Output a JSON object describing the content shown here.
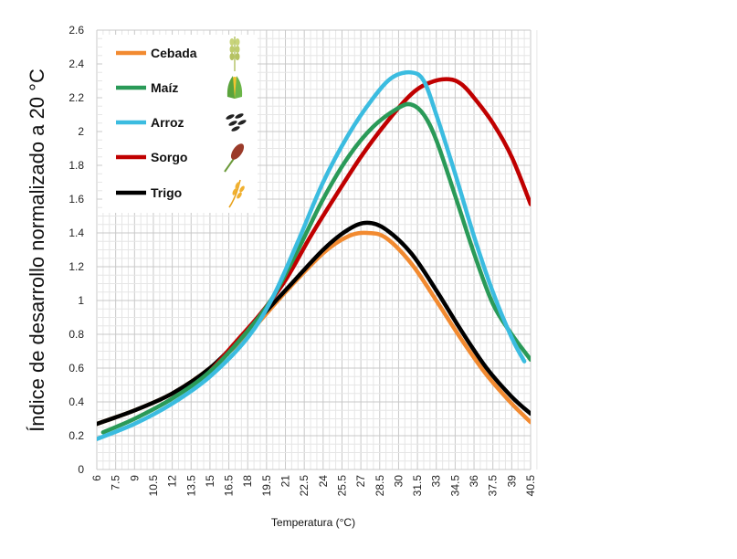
{
  "chart_data": {
    "type": "line",
    "title": "",
    "xlabel": "Temperatura (°C)",
    "ylabel": "Índice de desarrollo normalizado a 20 °C",
    "xlim": [
      6,
      40.5
    ],
    "ylim": [
      0,
      2.6
    ],
    "x_ticks": [
      "6",
      "7.5",
      "9",
      "10.5",
      "12",
      "13.5",
      "15",
      "16.5",
      "18",
      "19.5",
      "21",
      "22.5",
      "24",
      "25.5",
      "27",
      "28.5",
      "30",
      "31.5",
      "33",
      "34.5",
      "36",
      "37.5",
      "39",
      "40.5"
    ],
    "y_ticks": [
      "0",
      "0.2",
      "0.4",
      "0.6",
      "0.8",
      "1",
      "1.2",
      "1.4",
      "1.6",
      "1.8",
      "2",
      "2.2",
      "2.4",
      "2.6"
    ],
    "grid": true,
    "legend_position": "top-left",
    "series": [
      {
        "name": "Cebada",
        "color": "#f28a30",
        "icon": "barley-icon",
        "points": [
          [
            6,
            0.27
          ],
          [
            9,
            0.35
          ],
          [
            12,
            0.45
          ],
          [
            15,
            0.6
          ],
          [
            18,
            0.8
          ],
          [
            21,
            1.05
          ],
          [
            24,
            1.28
          ],
          [
            26,
            1.38
          ],
          [
            27.5,
            1.4
          ],
          [
            29,
            1.37
          ],
          [
            31,
            1.22
          ],
          [
            33,
            1.0
          ],
          [
            35,
            0.77
          ],
          [
            37,
            0.56
          ],
          [
            39,
            0.39
          ],
          [
            40.5,
            0.28
          ]
        ]
      },
      {
        "name": "Maíz",
        "color": "#2a9a58",
        "icon": "corn-icon",
        "points": [
          [
            6.5,
            0.22
          ],
          [
            9,
            0.3
          ],
          [
            12,
            0.42
          ],
          [
            15,
            0.58
          ],
          [
            18,
            0.82
          ],
          [
            20,
            1.02
          ],
          [
            22,
            1.3
          ],
          [
            24,
            1.6
          ],
          [
            26,
            1.85
          ],
          [
            28,
            2.03
          ],
          [
            30,
            2.14
          ],
          [
            31,
            2.16
          ],
          [
            32,
            2.1
          ],
          [
            33,
            1.95
          ],
          [
            34.5,
            1.62
          ],
          [
            36,
            1.28
          ],
          [
            37.5,
            0.98
          ],
          [
            39,
            0.8
          ],
          [
            40.5,
            0.65
          ]
        ]
      },
      {
        "name": "Arroz",
        "color": "#3bbce0",
        "icon": "rice-icon",
        "points": [
          [
            6,
            0.18
          ],
          [
            9,
            0.27
          ],
          [
            12,
            0.39
          ],
          [
            15,
            0.55
          ],
          [
            18,
            0.78
          ],
          [
            20,
            1.02
          ],
          [
            22,
            1.35
          ],
          [
            24,
            1.7
          ],
          [
            26,
            1.98
          ],
          [
            28,
            2.2
          ],
          [
            29.5,
            2.32
          ],
          [
            31,
            2.35
          ],
          [
            32,
            2.3
          ],
          [
            33,
            2.1
          ],
          [
            34.5,
            1.75
          ],
          [
            36,
            1.38
          ],
          [
            37.5,
            1.05
          ],
          [
            39,
            0.78
          ],
          [
            40,
            0.64
          ]
        ]
      },
      {
        "name": "Sorgo",
        "color": "#c00000",
        "icon": "sorghum-icon",
        "points": [
          [
            15,
            0.58
          ],
          [
            17,
            0.75
          ],
          [
            19,
            0.92
          ],
          [
            21,
            1.12
          ],
          [
            23,
            1.38
          ],
          [
            25,
            1.62
          ],
          [
            27,
            1.85
          ],
          [
            29,
            2.05
          ],
          [
            31,
            2.22
          ],
          [
            32.5,
            2.29
          ],
          [
            34,
            2.31
          ],
          [
            35,
            2.28
          ],
          [
            36,
            2.2
          ],
          [
            37.5,
            2.05
          ],
          [
            39,
            1.85
          ],
          [
            40.5,
            1.57
          ]
        ]
      },
      {
        "name": "Trigo",
        "color": "#000000",
        "icon": "wheat-icon",
        "points": [
          [
            6,
            0.27
          ],
          [
            9,
            0.35
          ],
          [
            12,
            0.45
          ],
          [
            15,
            0.6
          ],
          [
            18,
            0.82
          ],
          [
            21,
            1.06
          ],
          [
            24,
            1.3
          ],
          [
            26,
            1.42
          ],
          [
            27.5,
            1.46
          ],
          [
            29,
            1.42
          ],
          [
            31,
            1.28
          ],
          [
            33,
            1.06
          ],
          [
            35,
            0.82
          ],
          [
            37,
            0.6
          ],
          [
            39,
            0.43
          ],
          [
            40.5,
            0.33
          ]
        ]
      }
    ]
  }
}
